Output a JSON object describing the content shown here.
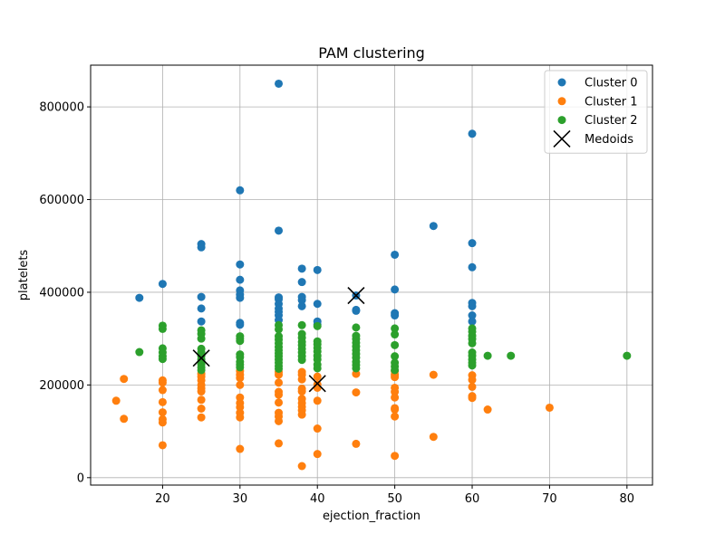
{
  "chart_data": {
    "type": "scatter",
    "title": "PAM clustering",
    "xlabel": "ejection_fraction",
    "ylabel": "platelets",
    "xlim": [
      10.7,
      83.3
    ],
    "ylim": [
      -16000,
      890000
    ],
    "xticks": [
      20,
      30,
      40,
      50,
      60,
      70,
      80
    ],
    "yticks": [
      0,
      200000,
      400000,
      600000,
      800000
    ],
    "xtick_labels": [
      "20",
      "30",
      "40",
      "50",
      "60",
      "70",
      "80"
    ],
    "ytick_labels": [
      "0",
      "200000",
      "400000",
      "600000",
      "800000"
    ],
    "grid": true,
    "legend_position": "top-right",
    "series": [
      {
        "name": "Cluster 0",
        "color": "#1f77b4",
        "marker": "circle",
        "points": [
          [
            17,
            388000
          ],
          [
            20,
            418000
          ],
          [
            25,
            504000
          ],
          [
            25,
            497000
          ],
          [
            25,
            390000
          ],
          [
            25,
            365000
          ],
          [
            25,
            337000
          ],
          [
            30,
            620000
          ],
          [
            30,
            460000
          ],
          [
            30,
            427000
          ],
          [
            30,
            404000
          ],
          [
            30,
            395000
          ],
          [
            30,
            388000
          ],
          [
            30,
            334000
          ],
          [
            30,
            330000
          ],
          [
            35,
            850000
          ],
          [
            35,
            533000
          ],
          [
            35,
            389000
          ],
          [
            35,
            385000
          ],
          [
            35,
            375000
          ],
          [
            35,
            365000
          ],
          [
            35,
            358000
          ],
          [
            35,
            350000
          ],
          [
            35,
            340000
          ],
          [
            38,
            451000
          ],
          [
            38,
            422000
          ],
          [
            38,
            390000
          ],
          [
            38,
            383000
          ],
          [
            38,
            370000
          ],
          [
            40,
            448000
          ],
          [
            40,
            375000
          ],
          [
            40,
            337000
          ],
          [
            40,
            330000
          ],
          [
            45,
            393000
          ],
          [
            45,
            362000
          ],
          [
            45,
            360000
          ],
          [
            50,
            481000
          ],
          [
            50,
            406000
          ],
          [
            50,
            355000
          ],
          [
            50,
            350000
          ],
          [
            55,
            543000
          ],
          [
            60,
            742000
          ],
          [
            60,
            506000
          ],
          [
            60,
            454000
          ],
          [
            60,
            377000
          ],
          [
            60,
            370000
          ],
          [
            60,
            350000
          ],
          [
            60,
            337000
          ]
        ]
      },
      {
        "name": "Cluster 1",
        "color": "#ff7f0e",
        "marker": "circle",
        "points": [
          [
            14,
            166000
          ],
          [
            15,
            213000
          ],
          [
            15,
            127000
          ],
          [
            20,
            210000
          ],
          [
            20,
            205000
          ],
          [
            20,
            189000
          ],
          [
            20,
            163000
          ],
          [
            20,
            141000
          ],
          [
            20,
            126000
          ],
          [
            20,
            119000
          ],
          [
            20,
            70000
          ],
          [
            25,
            224000
          ],
          [
            25,
            218000
          ],
          [
            25,
            210000
          ],
          [
            25,
            200000
          ],
          [
            25,
            193000
          ],
          [
            25,
            186000
          ],
          [
            25,
            168000
          ],
          [
            25,
            149000
          ],
          [
            25,
            130000
          ],
          [
            30,
            230000
          ],
          [
            30,
            222000
          ],
          [
            30,
            215000
          ],
          [
            30,
            200000
          ],
          [
            30,
            173000
          ],
          [
            30,
            161000
          ],
          [
            30,
            152000
          ],
          [
            30,
            140000
          ],
          [
            30,
            130000
          ],
          [
            30,
            62000
          ],
          [
            35,
            228000
          ],
          [
            35,
            222000
          ],
          [
            35,
            205000
          ],
          [
            35,
            185000
          ],
          [
            35,
            179000
          ],
          [
            35,
            162000
          ],
          [
            35,
            140000
          ],
          [
            35,
            132000
          ],
          [
            35,
            122000
          ],
          [
            35,
            74000
          ],
          [
            38,
            228000
          ],
          [
            38,
            222000
          ],
          [
            38,
            212000
          ],
          [
            38,
            192000
          ],
          [
            38,
            186000
          ],
          [
            38,
            170000
          ],
          [
            38,
            161000
          ],
          [
            38,
            153000
          ],
          [
            38,
            145000
          ],
          [
            38,
            136000
          ],
          [
            38,
            25000
          ],
          [
            40,
            218000
          ],
          [
            40,
            201000
          ],
          [
            40,
            194000
          ],
          [
            40,
            166000
          ],
          [
            40,
            106000
          ],
          [
            40,
            51000
          ],
          [
            45,
            224000
          ],
          [
            45,
            184000
          ],
          [
            45,
            73000
          ],
          [
            50,
            230000
          ],
          [
            50,
            222000
          ],
          [
            50,
            217000
          ],
          [
            50,
            194000
          ],
          [
            50,
            185000
          ],
          [
            50,
            173000
          ],
          [
            50,
            150000
          ],
          [
            50,
            147000
          ],
          [
            50,
            132000
          ],
          [
            50,
            47000
          ],
          [
            55,
            222000
          ],
          [
            55,
            88000
          ],
          [
            60,
            221000
          ],
          [
            60,
            211000
          ],
          [
            60,
            196000
          ],
          [
            60,
            176000
          ],
          [
            60,
            172000
          ],
          [
            62,
            147000
          ],
          [
            70,
            151000
          ]
        ]
      },
      {
        "name": "Cluster 2",
        "color": "#2ca02c",
        "marker": "circle",
        "points": [
          [
            17,
            271000
          ],
          [
            20,
            328000
          ],
          [
            20,
            321000
          ],
          [
            20,
            279000
          ],
          [
            20,
            270000
          ],
          [
            20,
            262000
          ],
          [
            20,
            256000
          ],
          [
            25,
            318000
          ],
          [
            25,
            310000
          ],
          [
            25,
            300000
          ],
          [
            25,
            278000
          ],
          [
            25,
            270000
          ],
          [
            25,
            263000
          ],
          [
            25,
            255000
          ],
          [
            25,
            250000
          ],
          [
            25,
            245000
          ],
          [
            25,
            238000
          ],
          [
            25,
            232000
          ],
          [
            30,
            305000
          ],
          [
            30,
            300000
          ],
          [
            30,
            295000
          ],
          [
            30,
            266000
          ],
          [
            30,
            260000
          ],
          [
            30,
            250000
          ],
          [
            30,
            244000
          ],
          [
            30,
            238000
          ],
          [
            35,
            329000
          ],
          [
            35,
            320000
          ],
          [
            35,
            305000
          ],
          [
            35,
            298000
          ],
          [
            35,
            290000
          ],
          [
            35,
            282000
          ],
          [
            35,
            275000
          ],
          [
            35,
            268000
          ],
          [
            35,
            262000
          ],
          [
            35,
            255000
          ],
          [
            35,
            248000
          ],
          [
            35,
            241000
          ],
          [
            35,
            235000
          ],
          [
            38,
            329000
          ],
          [
            38,
            310000
          ],
          [
            38,
            302000
          ],
          [
            38,
            293000
          ],
          [
            38,
            286000
          ],
          [
            38,
            278000
          ],
          [
            38,
            270000
          ],
          [
            38,
            262000
          ],
          [
            38,
            254000
          ],
          [
            40,
            327000
          ],
          [
            40,
            294000
          ],
          [
            40,
            288000
          ],
          [
            40,
            280000
          ],
          [
            40,
            272000
          ],
          [
            40,
            263000
          ],
          [
            40,
            255000
          ],
          [
            40,
            244000
          ],
          [
            40,
            236000
          ],
          [
            45,
            324000
          ],
          [
            45,
            306000
          ],
          [
            45,
            299000
          ],
          [
            45,
            291000
          ],
          [
            45,
            283000
          ],
          [
            45,
            275000
          ],
          [
            45,
            267000
          ],
          [
            45,
            259000
          ],
          [
            45,
            250000
          ],
          [
            45,
            243000
          ],
          [
            45,
            236000
          ],
          [
            50,
            322000
          ],
          [
            50,
            309000
          ],
          [
            50,
            286000
          ],
          [
            50,
            262000
          ],
          [
            50,
            248000
          ],
          [
            50,
            240000
          ],
          [
            50,
            232000
          ],
          [
            60,
            322000
          ],
          [
            60,
            315000
          ],
          [
            60,
            306000
          ],
          [
            60,
            299000
          ],
          [
            60,
            290000
          ],
          [
            60,
            270000
          ],
          [
            60,
            263000
          ],
          [
            60,
            255000
          ],
          [
            60,
            248000
          ],
          [
            60,
            242000
          ],
          [
            62,
            263000
          ],
          [
            65,
            263000
          ],
          [
            80,
            263000
          ]
        ]
      },
      {
        "name": "Medoids",
        "color": "#000000",
        "marker": "x",
        "points": [
          [
            45,
            393000
          ],
          [
            25,
            258000
          ],
          [
            40,
            203000
          ]
        ]
      }
    ]
  }
}
